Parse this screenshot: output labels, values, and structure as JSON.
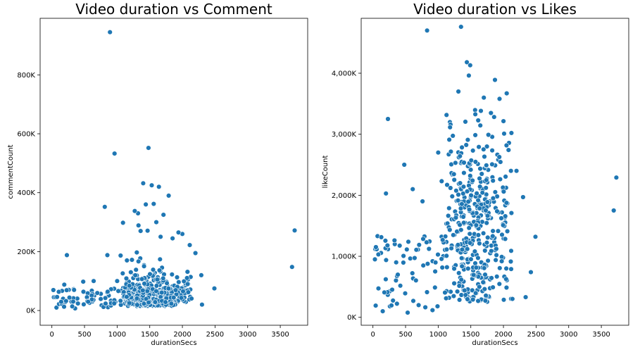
{
  "chart_data": [
    {
      "type": "scatter",
      "title": "Video duration vs Comment",
      "xlabel": "durationSecs",
      "ylabel": "commentCount",
      "xlim": [
        -180,
        3920
      ],
      "ylim": [
        -50000,
        992000
      ],
      "xticks": [
        0,
        500,
        1000,
        1500,
        2000,
        2500,
        3000,
        3500
      ],
      "xtick_labels": [
        "0",
        "500",
        "1000",
        "1500",
        "2000",
        "2500",
        "3000",
        "3500"
      ],
      "yticks": [
        0,
        200000,
        400000,
        600000,
        800000
      ],
      "ytick_labels": [
        "0K",
        "200K",
        "400K",
        "600K",
        "800K"
      ],
      "color": "#1f77b4",
      "grid": false,
      "outliers": [
        [
          890,
          945000
        ],
        [
          960,
          533000
        ],
        [
          1480,
          552000
        ],
        [
          810,
          352000
        ],
        [
          1090,
          298000
        ],
        [
          1320,
          330000
        ],
        [
          1400,
          432000
        ],
        [
          1530,
          425000
        ],
        [
          1640,
          420000
        ],
        [
          1790,
          390000
        ],
        [
          1270,
          338000
        ],
        [
          1440,
          360000
        ],
        [
          1560,
          362000
        ],
        [
          1710,
          325000
        ],
        [
          2000,
          260000
        ],
        [
          1940,
          265000
        ],
        [
          1850,
          245000
        ],
        [
          2200,
          195000
        ],
        [
          2290,
          120000
        ],
        [
          2490,
          75000
        ],
        [
          3720,
          272000
        ],
        [
          3680,
          148000
        ],
        [
          230,
          188000
        ],
        [
          850,
          188000
        ],
        [
          190,
          88000
        ],
        [
          480,
          98000
        ],
        [
          640,
          100000
        ],
        [
          30,
          45000
        ],
        [
          70,
          10000
        ],
        [
          300,
          30000
        ],
        [
          1000,
          100000
        ],
        [
          2300,
          20000
        ],
        [
          1150,
          170000
        ],
        [
          1210,
          130000
        ],
        [
          1360,
          270000
        ],
        [
          1600,
          300000
        ]
      ],
      "cluster": {
        "center": [
          1550,
          75000
        ],
        "spread": [
          330,
          45000
        ],
        "count": 420,
        "note": "dense cloud"
      }
    },
    {
      "type": "scatter",
      "title": "Video duration vs Likes",
      "xlabel": "durationSecs",
      "ylabel": "likeCount",
      "xlim": [
        -180,
        3920
      ],
      "ylim": [
        -130000,
        4900000
      ],
      "xticks": [
        0,
        500,
        1000,
        1500,
        2000,
        2500,
        3000,
        3500
      ],
      "xtick_labels": [
        "0",
        "500",
        "1000",
        "1500",
        "2000",
        "2500",
        "3000",
        "3500"
      ],
      "yticks": [
        0,
        1000000,
        2000000,
        3000000,
        4000000
      ],
      "ytick_labels": [
        "0K",
        "1,000K",
        "2,000K",
        "3,000K",
        "4,000K"
      ],
      "color": "#1f77b4",
      "grid": false,
      "outliers": [
        [
          830,
          4700000
        ],
        [
          1350,
          4760000
        ],
        [
          1440,
          4180000
        ],
        [
          1490,
          4130000
        ],
        [
          1870,
          3890000
        ],
        [
          2050,
          3670000
        ],
        [
          1940,
          3580000
        ],
        [
          3730,
          2290000
        ],
        [
          3690,
          1750000
        ],
        [
          2490,
          1320000
        ],
        [
          230,
          3250000
        ],
        [
          480,
          2500000
        ],
        [
          200,
          2030000
        ],
        [
          70,
          1330000
        ],
        [
          30,
          950000
        ],
        [
          610,
          2100000
        ],
        [
          760,
          1900000
        ],
        [
          1000,
          2700000
        ],
        [
          1180,
          3200000
        ],
        [
          1310,
          3700000
        ],
        [
          1700,
          3600000
        ],
        [
          2010,
          3010000
        ],
        [
          2200,
          2400000
        ],
        [
          2300,
          1970000
        ],
        [
          2340,
          330000
        ],
        [
          2420,
          740000
        ],
        [
          150,
          100000
        ],
        [
          260,
          180000
        ],
        [
          700,
          200000
        ],
        [
          990,
          180000
        ]
      ],
      "cluster": {
        "center": [
          1560,
          1500000
        ],
        "spread": [
          330,
          800000
        ],
        "count": 420,
        "note": "wide cloud"
      }
    }
  ]
}
